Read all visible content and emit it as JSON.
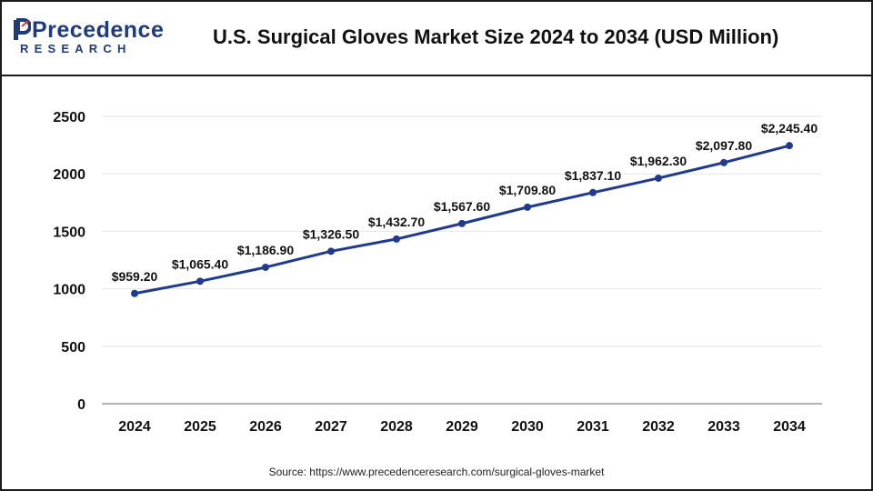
{
  "brand": {
    "name": "Precedence",
    "sub": "RESEARCH"
  },
  "header": {
    "title": "U.S. Surgical Gloves Market Size 2024 to 2034 (USD Million)"
  },
  "footer": {
    "source": "Source: https://www.precedenceresearch.com/surgical-gloves-market"
  },
  "colors": {
    "line": "#1f3a8f",
    "brand": "#1f3b7a",
    "grid": "#e6e6e6"
  },
  "chart_data": {
    "type": "line",
    "title": "U.S. Surgical Gloves Market Size 2024 to 2034 (USD Million)",
    "xlabel": "",
    "ylabel": "",
    "ylim": [
      0,
      2500
    ],
    "yticks": [
      0,
      500,
      1000,
      1500,
      2000,
      2500
    ],
    "grid": true,
    "categories": [
      "2024",
      "2025",
      "2026",
      "2027",
      "2028",
      "2029",
      "2030",
      "2031",
      "2032",
      "2033",
      "2034"
    ],
    "series": [
      {
        "values": [
          959.2,
          1065.4,
          1186.9,
          1326.5,
          1432.7,
          1567.6,
          1709.8,
          1837.1,
          1962.3,
          2097.8,
          2245.4
        ],
        "labels": [
          "$959.20",
          "$1,065.40",
          "$1,186.90",
          "$1,326.50",
          "$1,432.70",
          "$1,567.60",
          "$1,709.80",
          "$1,837.10",
          "$1,962.30",
          "$2,097.80",
          "$2,245.40"
        ]
      }
    ]
  }
}
